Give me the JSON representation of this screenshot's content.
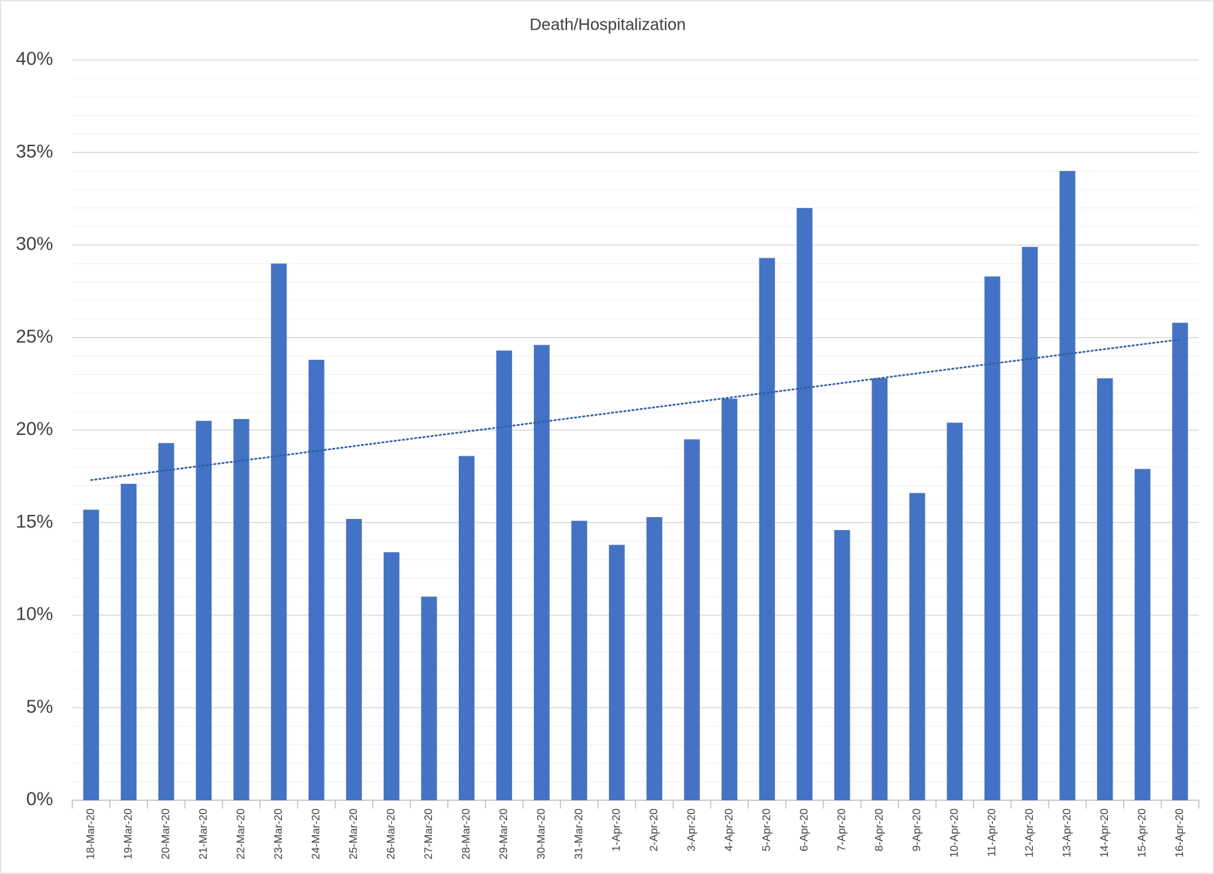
{
  "chart_data": {
    "type": "bar",
    "title": "Death/Hospitalization",
    "categories": [
      "18-Mar-20",
      "19-Mar-20",
      "20-Mar-20",
      "21-Mar-20",
      "22-Mar-20",
      "23-Mar-20",
      "24-Mar-20",
      "25-Mar-20",
      "26-Mar-20",
      "27-Mar-20",
      "28-Mar-20",
      "29-Mar-20",
      "30-Mar-20",
      "31-Mar-20",
      "1-Apr-20",
      "2-Apr-20",
      "3-Apr-20",
      "4-Apr-20",
      "5-Apr-20",
      "6-Apr-20",
      "7-Apr-20",
      "8-Apr-20",
      "9-Apr-20",
      "10-Apr-20",
      "11-Apr-20",
      "12-Apr-20",
      "13-Apr-20",
      "14-Apr-20",
      "15-Apr-20",
      "16-Apr-20"
    ],
    "values": [
      15.7,
      17.1,
      19.3,
      20.5,
      20.6,
      29.0,
      23.8,
      15.2,
      13.4,
      11.0,
      18.6,
      24.3,
      24.6,
      15.1,
      13.8,
      15.3,
      19.5,
      21.7,
      29.3,
      32.0,
      14.6,
      22.8,
      16.6,
      20.4,
      28.3,
      29.9,
      34.0,
      22.8,
      17.9,
      25.8
    ],
    "color": "#4472c4",
    "trendline": {
      "start": 17.3,
      "end": 24.9,
      "color": "#2e5fa8"
    },
    "ylim": [
      0,
      40
    ],
    "yticks": [
      {
        "value": 0,
        "label": "0%"
      },
      {
        "value": 5,
        "label": "5%"
      },
      {
        "value": 10,
        "label": "10%"
      },
      {
        "value": 15,
        "label": "15%"
      },
      {
        "value": 20,
        "label": "20%"
      },
      {
        "value": 25,
        "label": "25%"
      },
      {
        "value": 30,
        "label": "30%"
      },
      {
        "value": 35,
        "label": "35%"
      },
      {
        "value": 40,
        "label": "40%"
      }
    ],
    "grid": true,
    "minor_grid_divisions": 5
  }
}
